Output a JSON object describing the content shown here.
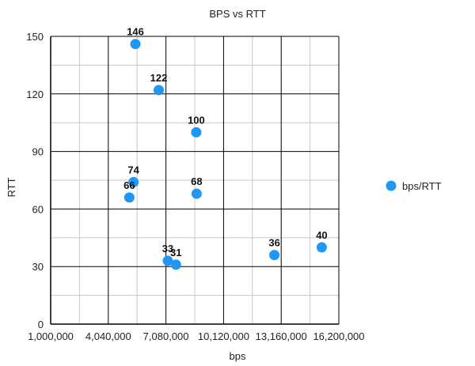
{
  "chart_data": {
    "type": "scatter",
    "title": "BPS vs RTT",
    "xlabel": "bps",
    "ylabel": "RTT",
    "xlim": [
      1000000,
      16200000
    ],
    "ylim": [
      0,
      150
    ],
    "x_ticks": [
      1000000,
      4040000,
      7080000,
      10120000,
      13160000,
      16200000
    ],
    "x_tick_labels": [
      "1,000,000",
      "4,040,000",
      "7,080,000",
      "10,120,000",
      "13,160,000",
      "16,200,000"
    ],
    "y_ticks": [
      0,
      30,
      60,
      90,
      120,
      150
    ],
    "y_tick_labels": [
      "0",
      "30",
      "60",
      "90",
      "120",
      "150"
    ],
    "grid": true,
    "legend_position": "right",
    "series": [
      {
        "name": "bps/RTT",
        "color": "#2196F3",
        "points": [
          {
            "x": 5470000,
            "y": 146,
            "label": "146"
          },
          {
            "x": 6700000,
            "y": 122,
            "label": "122"
          },
          {
            "x": 8680000,
            "y": 100,
            "label": "100"
          },
          {
            "x": 5370000,
            "y": 74,
            "label": "74"
          },
          {
            "x": 5150000,
            "y": 66,
            "label": "66"
          },
          {
            "x": 8700000,
            "y": 68,
            "label": "68"
          },
          {
            "x": 7180000,
            "y": 33,
            "label": "33"
          },
          {
            "x": 7610000,
            "y": 31,
            "label": "31"
          },
          {
            "x": 12800000,
            "y": 36,
            "label": "36"
          },
          {
            "x": 15300000,
            "y": 40,
            "label": "40"
          }
        ]
      }
    ]
  }
}
